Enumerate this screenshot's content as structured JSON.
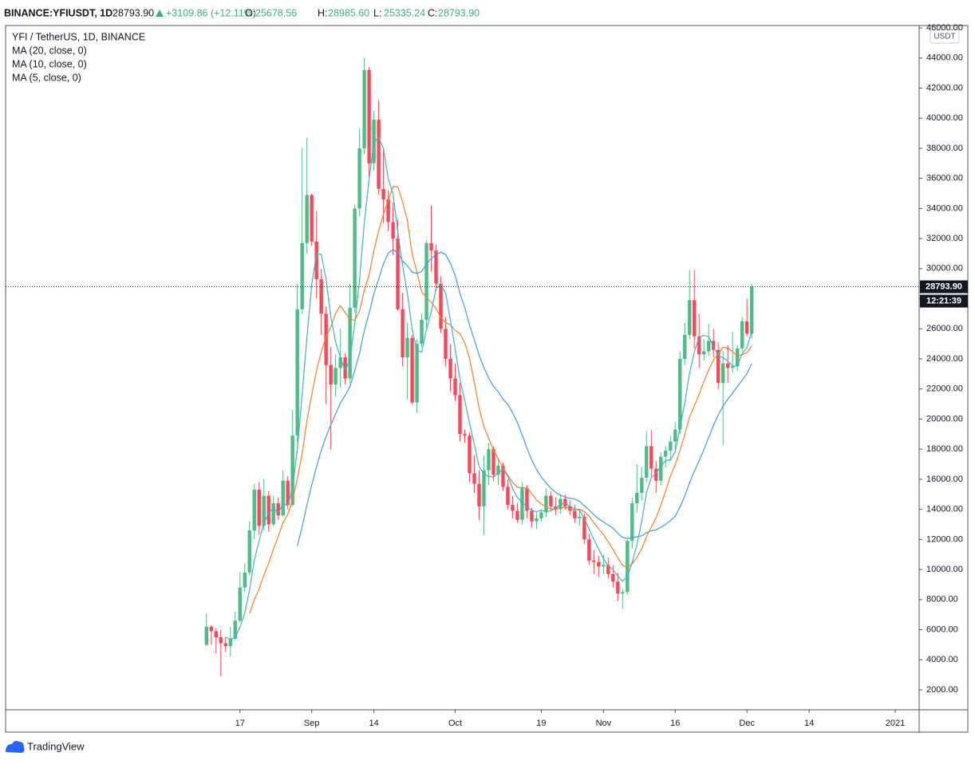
{
  "header": {
    "symbol": "BINANCE:YFIUSDT, 1D",
    "last": "28793.90",
    "change": "+3109.86 (+12.11%)",
    "ohlc": [
      {
        "label": "O:",
        "value": "25678.56"
      },
      {
        "label": "H:",
        "value": "28985.60"
      },
      {
        "label": "L:",
        "value": "25335.24"
      },
      {
        "label": "C:",
        "value": "28793.90"
      }
    ]
  },
  "chart_data": {
    "type": "candlestick",
    "title": "YFI / TetherUS, 1D, BINANCE",
    "currency": "USDT",
    "last_price_label": "28793.90",
    "countdown": "12:21:39",
    "up_color": "#53b987",
    "down_color": "#eb4d5c",
    "grid": false,
    "open": [
      5000,
      6200,
      5900,
      5500,
      5100,
      4900,
      5400,
      6600,
      8800,
      9800,
      12600,
      15300,
      12900,
      14900,
      13000,
      14400,
      13600,
      15900,
      14300,
      18900,
      27300,
      31700,
      34900,
      31800,
      29300,
      27000,
      23600,
      22300,
      23400,
      24100,
      22700,
      27400,
      34000,
      38000,
      43200,
      37000,
      39900,
      35300,
      34600,
      33100,
      32000,
      27300,
      24100,
      25400,
      21100,
      25000,
      26600,
      31700,
      31200,
      29000,
      26000,
      24000,
      22700,
      21600,
      19000,
      18900,
      16400,
      15700,
      14200,
      16600,
      18000,
      16300,
      16900,
      15500,
      14300,
      13900,
      13300,
      15400,
      13900,
      13200,
      13400,
      13800,
      14900,
      14200,
      14000,
      14700,
      14200,
      13900,
      13400,
      13500,
      12000,
      10600,
      10500,
      10200,
      10300,
      9700,
      9200,
      8400,
      8500,
      11900,
      14400,
      15100,
      16100,
      18200,
      16700,
      15900,
      17500,
      17900,
      18500,
      19300,
      24000,
      25600,
      27900,
      25500,
      24300,
      24500,
      25200,
      24600,
      22400,
      23700,
      23400,
      23500,
      24700,
      26500,
      25678.56
    ],
    "high": [
      7100,
      6300,
      6100,
      6000,
      5500,
      6200,
      7200,
      9800,
      10400,
      13200,
      15700,
      15800,
      16000,
      15200,
      14900,
      14800,
      16600,
      16200,
      20600,
      29000,
      38000,
      38700,
      35000,
      33800,
      30000,
      27500,
      24800,
      24300,
      26000,
      24400,
      29000,
      34300,
      39300,
      44000,
      43400,
      40500,
      41200,
      38000,
      35200,
      34400,
      33300,
      28400,
      26400,
      25600,
      25300,
      27000,
      31900,
      34200,
      31600,
      29500,
      26800,
      25000,
      23700,
      22400,
      19300,
      19100,
      17600,
      16600,
      17600,
      18400,
      18200,
      17300,
      17100,
      16000,
      14900,
      14400,
      15800,
      15600,
      14100,
      13800,
      14000,
      15400,
      15200,
      14800,
      15000,
      15000,
      14600,
      14300,
      13900,
      13700,
      12400,
      11300,
      10900,
      11000,
      10800,
      10300,
      9800,
      8700,
      12000,
      14800,
      17000,
      16800,
      19200,
      19300,
      17200,
      17800,
      18200,
      18900,
      19800,
      24500,
      26400,
      29900,
      29900,
      27000,
      25300,
      26300,
      26000,
      25100,
      24500,
      24900,
      25800,
      24900,
      26800,
      28000,
      28985.6
    ],
    "low": [
      4900,
      5000,
      4400,
      2900,
      4500,
      4200,
      5300,
      6500,
      8500,
      9600,
      12000,
      12300,
      12600,
      12500,
      12900,
      13300,
      13500,
      14000,
      14200,
      18500,
      27000,
      31000,
      31500,
      28000,
      25600,
      21000,
      18000,
      21500,
      22100,
      22300,
      22400,
      27100,
      33500,
      37600,
      36100,
      36500,
      34900,
      33000,
      32500,
      30900,
      27200,
      23500,
      21300,
      21000,
      20400,
      24800,
      26000,
      29800,
      28500,
      25700,
      23500,
      21800,
      21200,
      18500,
      18400,
      15800,
      15100,
      13300,
      12300,
      15600,
      15900,
      15600,
      15200,
      14000,
      13400,
      13100,
      13000,
      13400,
      12800,
      12700,
      13200,
      13500,
      13900,
      13600,
      13700,
      14000,
      13600,
      13100,
      12900,
      11700,
      10300,
      9700,
      9500,
      9700,
      9400,
      8800,
      7900,
      7400,
      8300,
      11400,
      13800,
      14600,
      15800,
      16100,
      15100,
      15600,
      16800,
      17200,
      18000,
      19000,
      23600,
      25300,
      24700,
      23400,
      23900,
      24200,
      24100,
      22000,
      18300,
      22400,
      23100,
      23200,
      24500,
      25500,
      25335.24
    ],
    "close": [
      6200,
      5900,
      5500,
      5100,
      4900,
      5400,
      6600,
      8800,
      9800,
      12600,
      15300,
      12900,
      14900,
      13000,
      14400,
      13600,
      15900,
      14300,
      18900,
      27300,
      31700,
      34900,
      31800,
      29300,
      27000,
      23600,
      22300,
      23400,
      24100,
      22700,
      27400,
      34000,
      38000,
      43200,
      37000,
      39900,
      35300,
      34600,
      33100,
      32000,
      27300,
      24100,
      25400,
      21100,
      25000,
      26600,
      31700,
      31200,
      29000,
      26000,
      24000,
      22700,
      21600,
      19000,
      18900,
      16400,
      15700,
      14200,
      16600,
      18000,
      16300,
      16900,
      15500,
      14300,
      13900,
      13300,
      15400,
      13900,
      13200,
      13400,
      13800,
      14900,
      14200,
      14000,
      14700,
      14200,
      13900,
      13400,
      13500,
      12000,
      10600,
      10500,
      10200,
      10300,
      9700,
      9200,
      8400,
      8500,
      11900,
      14400,
      15100,
      16100,
      18200,
      16700,
      15900,
      17500,
      17900,
      18500,
      19300,
      24000,
      25600,
      27900,
      25500,
      24300,
      24500,
      25200,
      24600,
      22400,
      23700,
      23400,
      23500,
      24700,
      26500,
      25680,
      28793.9
    ],
    "series": [
      {
        "name": "MA (20, close, 0)",
        "color": "#3d9be9",
        "values": [
          null,
          null,
          null,
          null,
          null,
          null,
          null,
          null,
          null,
          null,
          null,
          null,
          null,
          null,
          null,
          null,
          null,
          null,
          null,
          11565,
          12840,
          14290,
          15605,
          16815,
          17920,
          18830,
          19615,
          20345,
          21060,
          21565,
          22170,
          23225,
          24380,
          25890,
          27020,
          28335,
          29305,
          30320,
          31030,
          31265,
          31045,
          30505,
          30185,
          29775,
          29675,
          29825,
          30295,
          30685,
          30930,
          31095,
          30925,
          30360,
          29540,
          28330,
          27425,
          26250,
          25270,
          24250,
          23425,
          22725,
          22175,
          21815,
          21320,
          20980,
          20425,
          19760,
          18945,
          18080,
          17290,
          16660,
          16150,
          15760,
          15390,
          15140,
          14930,
          14820,
          14730,
          14690,
          14535,
          14235,
          13950,
          13630,
          13365,
          13165,
          12955,
          12750,
          12400,
          12130,
          12065,
          12115,
          12180,
          12240,
          12440,
          12575,
          12635,
          12800,
          13000,
          13255,
          13545,
          14145,
          14895,
          15765,
          16530,
          17230,
          17970,
          18770,
          19580,
          20275,
          20865,
          21315,
          21735,
          22165,
          22580,
          23029,
          23674
        ]
      },
      {
        "name": "MA (10, close, 0)",
        "color": "#f57f20",
        "values": [
          null,
          null,
          null,
          null,
          null,
          null,
          null,
          null,
          null,
          7080,
          7990,
          8690,
          9630,
          10420,
          11370,
          12190,
          13120,
          13670,
          14580,
          16050,
          17690,
          19890,
          21580,
          23210,
          24470,
          25470,
          26110,
          27020,
          27540,
          27080,
          26650,
          26560,
          27180,
          28570,
          29570,
          31200,
          32500,
          33620,
          34520,
          35450,
          35440,
          34450,
          33190,
          30980,
          29780,
          28450,
          28090,
          27750,
          27340,
          26740,
          26410,
          26270,
          25890,
          25680,
          25070,
          24050,
          22450,
          20750,
          19510,
          18710,
          17940,
          17360,
          16750,
          16280,
          15780,
          15470,
          15440,
          15410,
          15070,
          14610,
          14360,
          14160,
          14030,
          14000,
          14080,
          14170,
          14020,
          13970,
          14000,
          13860,
          13540,
          13100,
          12700,
          12330,
          11830,
          11330,
          10780,
          10290,
          10130,
          10370,
          10820,
          11380,
          12180,
          12820,
          13440,
          14270,
          15220,
          16220,
          16960,
          17920,
          18970,
          20150,
          20880,
          21640,
          22500,
          23270,
          23940,
          24330,
          24770,
          24710,
          24500,
          24180,
          24280,
          24418,
          24847
        ]
      },
      {
        "name": "MA (5, close, 0)",
        "color": "#3fb1bf",
        "values": [
          null,
          null,
          null,
          null,
          5520,
          5360,
          5500,
          6160,
          7100,
          8640,
          10620,
          11880,
          13100,
          13740,
          14100,
          13760,
          14360,
          14240,
          15420,
          18000,
          21620,
          25420,
          28920,
          31000,
          30940,
          29320,
          26800,
          25120,
          24080,
          23220,
          23980,
          26320,
          29240,
          33060,
          35920,
          38420,
          38680,
          38000,
          35980,
          34980,
          32460,
          30220,
          28380,
          25980,
          24580,
          24440,
          25960,
          27120,
          28700,
          28900,
          28380,
          26580,
          24660,
          22660,
          21240,
          19720,
          18320,
          16840,
          16360,
          16180,
          16160,
          16400,
          16660,
          16200,
          15380,
          14780,
          14480,
          14160,
          13940,
          13840,
          13940,
          13840,
          13900,
          14060,
          14320,
          14400,
          14200,
          14040,
          13940,
          13400,
          12680,
          12000,
          11360,
          10720,
          10260,
          9980,
          9560,
          9220,
          9540,
          10480,
          11660,
          13200,
          15140,
          16100,
          16400,
          16880,
          17240,
          17300,
          17820,
          19440,
          21060,
          23060,
          24460,
          25460,
          25560,
          25480,
          24820,
          24200,
          24080,
          23860,
          23520,
          23540,
          24360,
          24756,
          25835
        ]
      }
    ],
    "xlim": [
      -42,
      149
    ],
    "xticks": [
      {
        "value": 7,
        "label": "17"
      },
      {
        "value": 22,
        "label": "Sep"
      },
      {
        "value": 35,
        "label": "14"
      },
      {
        "value": 52,
        "label": "Oct"
      },
      {
        "value": 70,
        "label": "19"
      },
      {
        "value": 83,
        "label": "Nov"
      },
      {
        "value": 98,
        "label": "16"
      },
      {
        "value": 113,
        "label": "Dec"
      },
      {
        "value": 126,
        "label": "14"
      },
      {
        "value": 144,
        "label": "2021"
      }
    ],
    "ylim": [
      675,
      46160
    ],
    "yticks": [
      {
        "value": 2000,
        "label": "2000.00"
      },
      {
        "value": 4000,
        "label": "4000.00"
      },
      {
        "value": 6000,
        "label": "6000.00"
      },
      {
        "value": 8000,
        "label": "8000.00"
      },
      {
        "value": 10000,
        "label": "10000.00"
      },
      {
        "value": 12000,
        "label": "12000.00"
      },
      {
        "value": 14000,
        "label": "14000.00"
      },
      {
        "value": 16000,
        "label": "16000.00"
      },
      {
        "value": 18000,
        "label": "18000.00"
      },
      {
        "value": 20000,
        "label": "20000.00"
      },
      {
        "value": 22000,
        "label": "22000.00"
      },
      {
        "value": 24000,
        "label": "24000.00"
      },
      {
        "value": 26000,
        "label": "26000.00"
      },
      {
        "value": 28000,
        "label": "28000.00"
      },
      {
        "value": 30000,
        "label": "30000.00"
      },
      {
        "value": 32000,
        "label": "32000.00"
      },
      {
        "value": 34000,
        "label": "34000.00"
      },
      {
        "value": 36000,
        "label": "36000.00"
      },
      {
        "value": 38000,
        "label": "38000.00"
      },
      {
        "value": 40000,
        "label": "40000.00"
      },
      {
        "value": 42000,
        "label": "42000.00"
      },
      {
        "value": 44000,
        "label": "44000.00"
      },
      {
        "value": 46000,
        "label": "46000.00"
      }
    ]
  },
  "footer": {
    "brand": "TradingView"
  }
}
